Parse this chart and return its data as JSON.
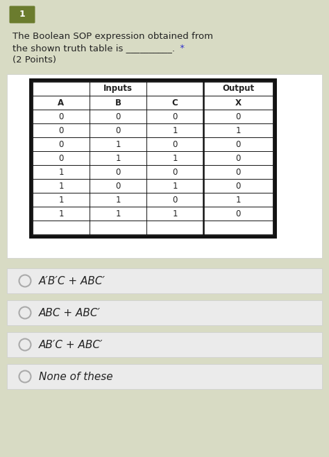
{
  "title_number": "1",
  "title_number_bg": "#6b7c2e",
  "question_text_line1": "The Boolean SOP expression obtained from",
  "question_text_line2": "the shown truth table is __________.",
  "question_asterisk": " *",
  "question_points": "(2 Points)",
  "bg_color": "#d8dbc4",
  "white_bg": "#ffffff",
  "table_border_color": "#111111",
  "table_header_inputs": "Inputs",
  "table_header_output": "Output",
  "table_col_headers": [
    "A",
    "B",
    "C",
    "X"
  ],
  "table_data": [
    [
      0,
      0,
      0,
      0
    ],
    [
      0,
      0,
      1,
      1
    ],
    [
      0,
      1,
      0,
      0
    ],
    [
      0,
      1,
      1,
      0
    ],
    [
      1,
      0,
      0,
      0
    ],
    [
      1,
      0,
      1,
      0
    ],
    [
      1,
      1,
      0,
      1
    ],
    [
      1,
      1,
      1,
      0
    ]
  ],
  "options": [
    "A′B′C + ABC′",
    "ABC + ABC′",
    "AB′C + ABC′",
    "None of these"
  ],
  "option_bg": "#ebebeb",
  "option_border": "#d0d0d0",
  "circle_color": "#aaaaaa",
  "text_color": "#222222",
  "asterisk_color": "#3333cc"
}
